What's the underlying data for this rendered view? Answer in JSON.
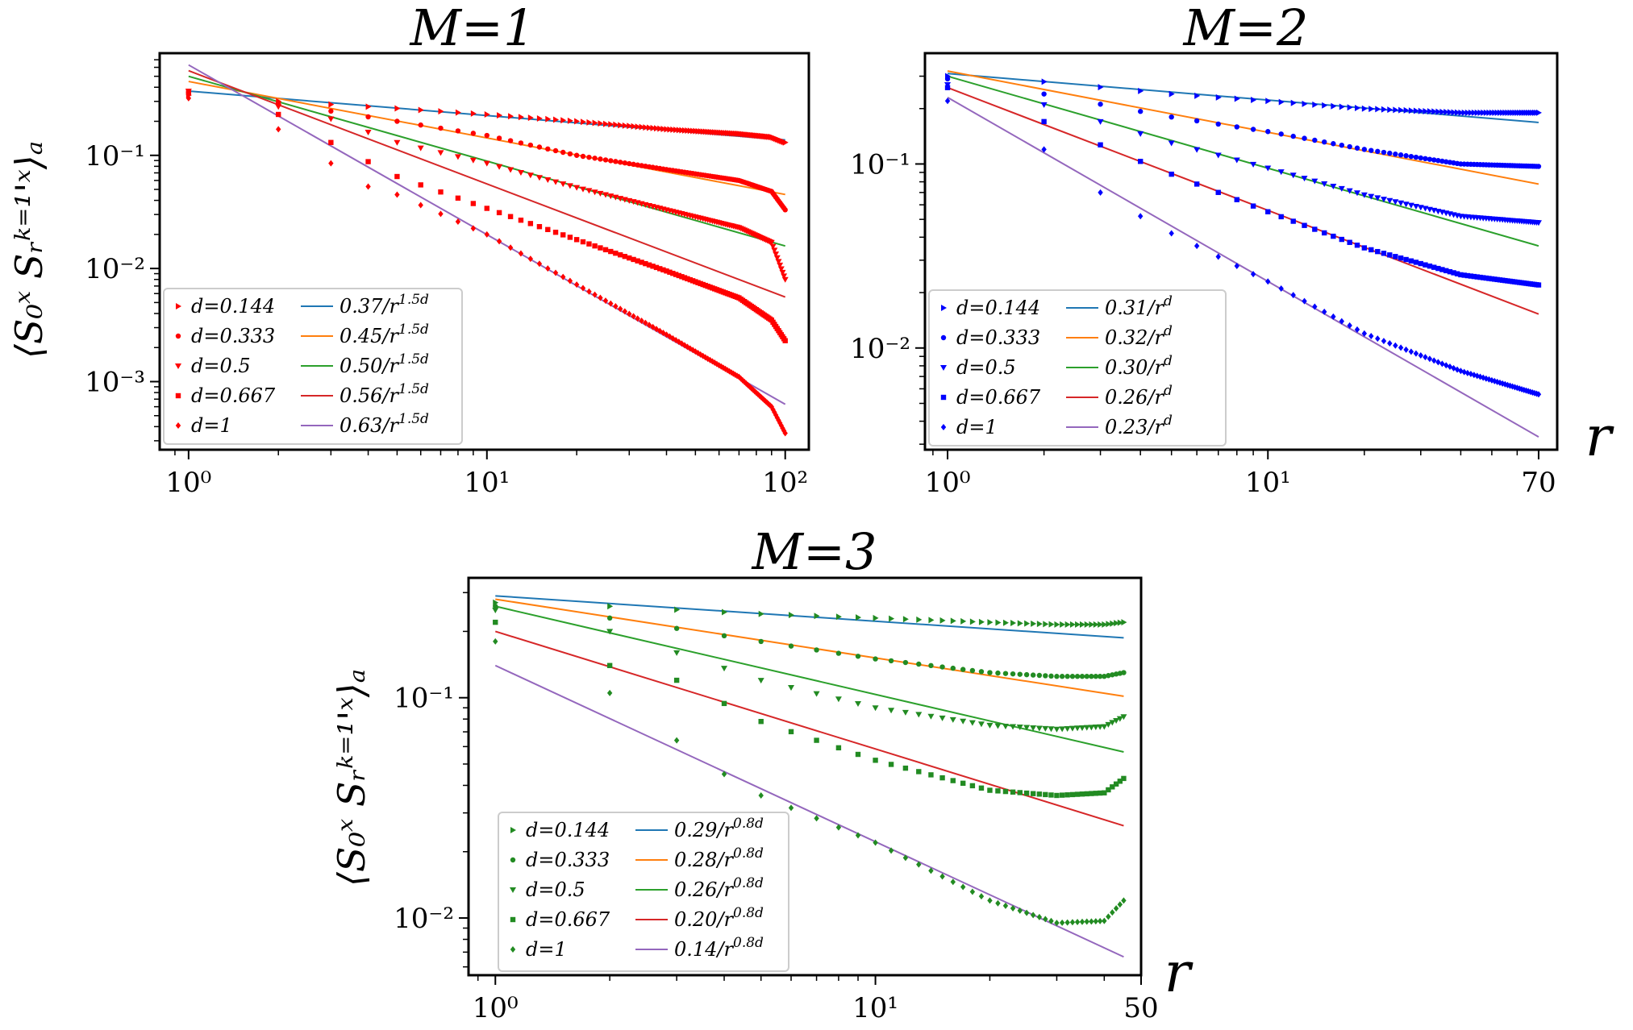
{
  "chart_data": [
    {
      "type": "scatter",
      "title": "M=1",
      "xlabel": "",
      "ylabel": "⟨S₀ˣ Sᵣᵏ⁼¹'ˣ⟩ₐ",
      "xscale": "log",
      "yscale": "log",
      "xlim": [
        0.8,
        120
      ],
      "ylim": [
        0.00025,
        0.8
      ],
      "xticks": [
        {
          "value": 1,
          "label": "10⁰"
        },
        {
          "value": 10,
          "label": "10¹"
        },
        {
          "value": 100,
          "label": "10²"
        }
      ],
      "yticks": [
        {
          "value": 0.1,
          "label": "10⁻¹"
        },
        {
          "value": 0.01,
          "label": "10⁻²"
        },
        {
          "value": 0.001,
          "label": "10⁻³"
        }
      ],
      "fit_exponent": 1.5,
      "legend_position": "lower-left",
      "marker_color": "#ff0000",
      "series": [
        {
          "name": "d=0.144",
          "d": 0.144,
          "marker": "triangle-right",
          "fit_label": "0.37/r^{1.5d}",
          "fit_amp": 0.37,
          "fit_color": "#1f77b4",
          "points": [
            [
              1,
              0.34
            ],
            [
              2,
              0.3
            ],
            [
              5,
              0.26
            ],
            [
              10,
              0.23
            ],
            [
              20,
              0.2
            ],
            [
              40,
              0.17
            ],
            [
              70,
              0.155
            ],
            [
              90,
              0.145
            ],
            [
              100,
              0.13
            ]
          ]
        },
        {
          "name": "d=0.333",
          "d": 0.333,
          "marker": "circle",
          "fit_label": "0.45/r^{1.5d}",
          "fit_amp": 0.45,
          "fit_color": "#ff7f0e",
          "points": [
            [
              1,
              0.36
            ],
            [
              2,
              0.29
            ],
            [
              5,
              0.2
            ],
            [
              10,
              0.15
            ],
            [
              20,
              0.1
            ],
            [
              40,
              0.075
            ],
            [
              70,
              0.06
            ],
            [
              90,
              0.048
            ],
            [
              100,
              0.033
            ]
          ]
        },
        {
          "name": "d=0.5",
          "d": 0.5,
          "marker": "triangle-down",
          "fit_label": "0.50/r^{1.5d}",
          "fit_amp": 0.5,
          "fit_color": "#2ca02c",
          "points": [
            [
              1,
              0.37
            ],
            [
              2,
              0.27
            ],
            [
              3,
              0.21
            ],
            [
              5,
              0.13
            ],
            [
              10,
              0.085
            ],
            [
              20,
              0.052
            ],
            [
              40,
              0.033
            ],
            [
              70,
              0.023
            ],
            [
              90,
              0.017
            ],
            [
              100,
              0.008
            ]
          ]
        },
        {
          "name": "d=0.667",
          "d": 0.667,
          "marker": "square",
          "fit_label": "0.56/r^{1.5d}",
          "fit_amp": 0.56,
          "fit_color": "#d62728",
          "points": [
            [
              1,
              0.36
            ],
            [
              2,
              0.23
            ],
            [
              3,
              0.13
            ],
            [
              5,
              0.065
            ],
            [
              10,
              0.034
            ],
            [
              20,
              0.018
            ],
            [
              40,
              0.0095
            ],
            [
              70,
              0.0055
            ],
            [
              90,
              0.0035
            ],
            [
              100,
              0.0023
            ]
          ]
        },
        {
          "name": "d=1",
          "d": 1,
          "marker": "diamond",
          "fit_label": "0.63/r^{1.5d}",
          "fit_amp": 0.63,
          "fit_color": "#9467bd",
          "points": [
            [
              1,
              0.32
            ],
            [
              2,
              0.17
            ],
            [
              3,
              0.085
            ],
            [
              4,
              0.053
            ],
            [
              5,
              0.045
            ],
            [
              10,
              0.02
            ],
            [
              20,
              0.0072
            ],
            [
              40,
              0.0026
            ],
            [
              70,
              0.0011
            ],
            [
              90,
              0.0006
            ],
            [
              100,
              0.00035
            ]
          ]
        }
      ]
    },
    {
      "type": "scatter",
      "title": "M=2",
      "xlabel": "r",
      "ylabel": "",
      "xscale": "log",
      "yscale": "log",
      "xlim": [
        0.85,
        80
      ],
      "ylim": [
        0.0028,
        0.4
      ],
      "xticks": [
        {
          "value": 1,
          "label": "10⁰"
        },
        {
          "value": 10,
          "label": "10¹"
        },
        {
          "value": 70,
          "label": "70"
        }
      ],
      "yticks": [
        {
          "value": 0.1,
          "label": "10⁻¹"
        },
        {
          "value": 0.01,
          "label": "10⁻²"
        }
      ],
      "fit_exponent": 1,
      "legend_position": "lower-left",
      "marker_color": "#0000ff",
      "series": [
        {
          "name": "d=0.144",
          "d": 0.144,
          "marker": "triangle-right",
          "fit_label": "0.31/r^{d}",
          "fit_amp": 0.31,
          "fit_color": "#1f77b4",
          "points": [
            [
              1,
              0.3
            ],
            [
              2,
              0.28
            ],
            [
              5,
              0.24
            ],
            [
              10,
              0.22
            ],
            [
              20,
              0.2
            ],
            [
              40,
              0.19
            ],
            [
              70,
              0.19
            ]
          ]
        },
        {
          "name": "d=0.333",
          "d": 0.333,
          "marker": "circle",
          "fit_label": "0.32/r^{d}",
          "fit_amp": 0.32,
          "fit_color": "#ff7f0e",
          "points": [
            [
              1,
              0.29
            ],
            [
              2,
              0.24
            ],
            [
              5,
              0.18
            ],
            [
              10,
              0.15
            ],
            [
              20,
              0.12
            ],
            [
              40,
              0.1
            ],
            [
              70,
              0.097
            ]
          ]
        },
        {
          "name": "d=0.5",
          "d": 0.5,
          "marker": "triangle-down",
          "fit_label": "0.30/r^{d}",
          "fit_amp": 0.3,
          "fit_color": "#2ca02c",
          "points": [
            [
              1,
              0.27
            ],
            [
              2,
              0.21
            ],
            [
              5,
              0.13
            ],
            [
              10,
              0.095
            ],
            [
              20,
              0.068
            ],
            [
              40,
              0.052
            ],
            [
              70,
              0.048
            ]
          ]
        },
        {
          "name": "d=0.667",
          "d": 0.667,
          "marker": "square",
          "fit_label": "0.26/r^{d}",
          "fit_amp": 0.26,
          "fit_color": "#d62728",
          "points": [
            [
              1,
              0.26
            ],
            [
              2,
              0.17
            ],
            [
              5,
              0.088
            ],
            [
              10,
              0.055
            ],
            [
              20,
              0.035
            ],
            [
              40,
              0.025
            ],
            [
              70,
              0.022
            ]
          ]
        },
        {
          "name": "d=1",
          "d": 1,
          "marker": "diamond",
          "fit_label": "0.23/r^{d}",
          "fit_amp": 0.23,
          "fit_color": "#9467bd",
          "points": [
            [
              1,
              0.22
            ],
            [
              2,
              0.12
            ],
            [
              3,
              0.07
            ],
            [
              4,
              0.052
            ],
            [
              5,
              0.042
            ],
            [
              10,
              0.023
            ],
            [
              20,
              0.012
            ],
            [
              40,
              0.0075
            ],
            [
              70,
              0.0056
            ]
          ]
        }
      ]
    },
    {
      "type": "scatter",
      "title": "M=3",
      "xlabel": "r",
      "ylabel": "⟨S₀ˣ Sᵣᵏ⁼¹'ˣ⟩ₐ",
      "xscale": "log",
      "yscale": "log",
      "xlim": [
        0.85,
        50
      ],
      "ylim": [
        0.0055,
        0.35
      ],
      "xticks": [
        {
          "value": 1,
          "label": "10⁰"
        },
        {
          "value": 10,
          "label": "10¹"
        },
        {
          "value": 50,
          "label": "50"
        }
      ],
      "yticks": [
        {
          "value": 0.1,
          "label": "10⁻¹"
        },
        {
          "value": 0.01,
          "label": "10⁻²"
        }
      ],
      "fit_exponent": 0.8,
      "legend_position": "lower-left",
      "marker_color": "#228b22",
      "series": [
        {
          "name": "d=0.144",
          "d": 0.144,
          "marker": "triangle-right",
          "fit_label": "0.29/r^{0.8d}",
          "fit_amp": 0.29,
          "fit_color": "#1f77b4",
          "points": [
            [
              1,
              0.27
            ],
            [
              2,
              0.26
            ],
            [
              5,
              0.24
            ],
            [
              10,
              0.23
            ],
            [
              20,
              0.22
            ],
            [
              30,
              0.215
            ],
            [
              40,
              0.215
            ],
            [
              45,
              0.22
            ]
          ]
        },
        {
          "name": "d=0.333",
          "d": 0.333,
          "marker": "circle",
          "fit_label": "0.28/r^{0.8d}",
          "fit_amp": 0.28,
          "fit_color": "#ff7f0e",
          "points": [
            [
              1,
              0.26
            ],
            [
              2,
              0.23
            ],
            [
              5,
              0.18
            ],
            [
              10,
              0.15
            ],
            [
              20,
              0.13
            ],
            [
              30,
              0.125
            ],
            [
              40,
              0.125
            ],
            [
              45,
              0.13
            ]
          ]
        },
        {
          "name": "d=0.5",
          "d": 0.5,
          "marker": "triangle-down",
          "fit_label": "0.26/r^{0.8d}",
          "fit_amp": 0.26,
          "fit_color": "#2ca02c",
          "points": [
            [
              1,
              0.25
            ],
            [
              2,
              0.2
            ],
            [
              3,
              0.16
            ],
            [
              5,
              0.12
            ],
            [
              10,
              0.09
            ],
            [
              20,
              0.075
            ],
            [
              30,
              0.072
            ],
            [
              40,
              0.074
            ],
            [
              45,
              0.082
            ]
          ]
        },
        {
          "name": "d=0.667",
          "d": 0.667,
          "marker": "square",
          "fit_label": "0.20/r^{0.8d}",
          "fit_amp": 0.2,
          "fit_color": "#d62728",
          "points": [
            [
              1,
              0.22
            ],
            [
              2,
              0.14
            ],
            [
              3,
              0.12
            ],
            [
              5,
              0.078
            ],
            [
              10,
              0.052
            ],
            [
              20,
              0.038
            ],
            [
              30,
              0.036
            ],
            [
              40,
              0.037
            ],
            [
              45,
              0.043
            ]
          ]
        },
        {
          "name": "d=1",
          "d": 1,
          "marker": "diamond",
          "fit_label": "0.14/r^{0.8d}",
          "fit_amp": 0.14,
          "fit_color": "#9467bd",
          "points": [
            [
              1,
              0.18
            ],
            [
              2,
              0.105
            ],
            [
              3,
              0.064
            ],
            [
              4,
              0.045
            ],
            [
              5,
              0.036
            ],
            [
              10,
              0.022
            ],
            [
              20,
              0.012
            ],
            [
              30,
              0.0095
            ],
            [
              40,
              0.0097
            ],
            [
              45,
              0.012
            ]
          ]
        }
      ]
    }
  ]
}
